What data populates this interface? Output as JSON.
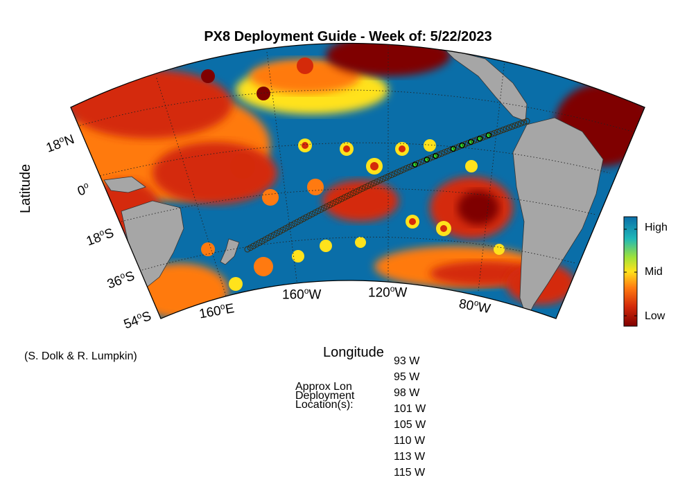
{
  "title": "PX8 Deployment Guide - Week of: 5/22/2023",
  "xlabel": "Longitude",
  "ylabel": "Latitude",
  "credit": "(S. Dolk & R. Lumpkin)",
  "colorbar": {
    "labels": {
      "high": "High",
      "mid": "Mid",
      "low": "Low"
    },
    "colors": [
      "#7f0000",
      "#d42a0a",
      "#ff7a10",
      "#ffe21c",
      "#9ee23a",
      "#1fb8b8",
      "#0a6ea8"
    ]
  },
  "lat_ticks": [
    {
      "deg": "18",
      "hemi": "N"
    },
    {
      "deg": "0",
      "hemi": ""
    },
    {
      "deg": "18",
      "hemi": "S"
    },
    {
      "deg": "36",
      "hemi": "S"
    },
    {
      "deg": "54",
      "hemi": "S"
    }
  ],
  "lon_ticks": [
    {
      "deg": "160",
      "hemi": "E"
    },
    {
      "deg": "160",
      "hemi": "W"
    },
    {
      "deg": "120",
      "hemi": "W"
    },
    {
      "deg": "80",
      "hemi": "W"
    }
  ],
  "deployment": {
    "label_lines": [
      "Approx Lon",
      "Deployment",
      "Location(s):"
    ],
    "locations": [
      "93 W",
      "95 W",
      "98 W",
      "101 W",
      "105 W",
      "110 W",
      "113 W",
      "115 W"
    ]
  },
  "map_colors": {
    "ocean_good": "#0a6ea8",
    "land": "#a6a6a6",
    "deploy_marker": "#2ee02e"
  }
}
